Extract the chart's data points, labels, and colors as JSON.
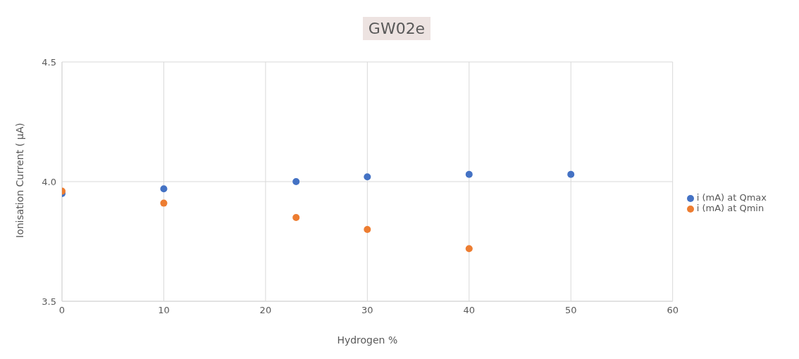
{
  "chart_data": {
    "type": "scatter",
    "title": "GW02e",
    "xlabel": "Hydrogen %",
    "ylabel": "Ionisation Current ( µA)",
    "x": [
      0,
      10,
      23,
      30,
      40,
      50
    ],
    "series": [
      {
        "name": "i (mA) at Qmax",
        "color": "#4472c4",
        "values": [
          3.95,
          3.97,
          4.0,
          4.02,
          4.03,
          4.03
        ]
      },
      {
        "name": "i (mA) at Qmin",
        "color": "#ed7d31",
        "values": [
          3.96,
          3.91,
          3.85,
          3.8,
          3.72,
          null
        ]
      }
    ],
    "xlim": [
      0,
      60
    ],
    "xticks": [
      0,
      10,
      20,
      30,
      40,
      50,
      60
    ],
    "ylim": [
      3.5,
      4.5
    ],
    "yticks": [
      3.5,
      {
        "value": 4,
        "label": "4.0"
      },
      4.5
    ],
    "grid": true,
    "legend": "right",
    "marker": "circle"
  }
}
